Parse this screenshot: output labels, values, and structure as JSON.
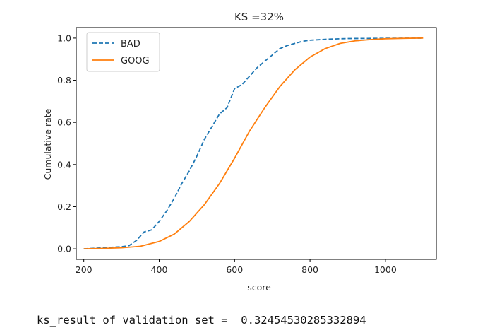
{
  "chart_data": {
    "type": "line",
    "title": "KS =32%",
    "xlabel": "score",
    "ylabel": "Cumulative rate",
    "xlim": [
      180,
      1135
    ],
    "ylim": [
      -0.05,
      1.05
    ],
    "xticks": [
      200,
      400,
      600,
      800,
      1000
    ],
    "yticks": [
      0.0,
      0.2,
      0.4,
      0.6,
      0.8,
      1.0
    ],
    "xtick_labels": [
      "200",
      "400",
      "600",
      "800",
      "1000"
    ],
    "ytick_labels": [
      "0.0",
      "0.2",
      "0.4",
      "0.6",
      "0.8",
      "1.0"
    ],
    "grid": false,
    "legend_position": "top-left",
    "series": [
      {
        "name": "BAD",
        "style": "dashed",
        "color": "#1f77b4",
        "x": [
          200,
          250,
          300,
          320,
          340,
          360,
          380,
          400,
          420,
          440,
          460,
          480,
          500,
          520,
          540,
          560,
          580,
          600,
          620,
          640,
          660,
          680,
          700,
          720,
          740,
          760,
          780,
          800,
          850,
          900,
          1000,
          1100
        ],
        "y": [
          0.0,
          0.005,
          0.01,
          0.015,
          0.04,
          0.08,
          0.09,
          0.13,
          0.18,
          0.24,
          0.31,
          0.37,
          0.44,
          0.52,
          0.58,
          0.64,
          0.67,
          0.76,
          0.78,
          0.82,
          0.86,
          0.89,
          0.92,
          0.95,
          0.965,
          0.975,
          0.985,
          0.99,
          0.995,
          0.998,
          0.999,
          1.0
        ]
      },
      {
        "name": "GOOG",
        "style": "solid",
        "color": "#ff7f0e",
        "x": [
          200,
          250,
          300,
          350,
          400,
          440,
          480,
          520,
          560,
          600,
          640,
          680,
          720,
          760,
          800,
          840,
          880,
          920,
          960,
          1000,
          1050,
          1100
        ],
        "y": [
          0.0,
          0.002,
          0.005,
          0.012,
          0.035,
          0.07,
          0.13,
          0.21,
          0.31,
          0.43,
          0.56,
          0.67,
          0.77,
          0.85,
          0.91,
          0.95,
          0.975,
          0.987,
          0.993,
          0.997,
          0.999,
          1.0
        ]
      }
    ]
  },
  "output": {
    "result_text": "ks_result of validation set =  0.32454530285332894"
  }
}
